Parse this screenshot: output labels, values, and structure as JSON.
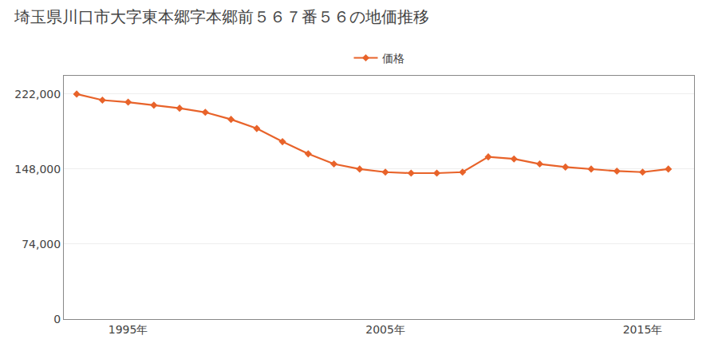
{
  "chart_data": {
    "type": "line",
    "title": "埼玉県川口市大字東本郷字本郷前５６７番５６の地価推移",
    "x": [
      1993,
      1994,
      1995,
      1996,
      1997,
      1998,
      1999,
      2000,
      2001,
      2002,
      2003,
      2004,
      2005,
      2006,
      2007,
      2008,
      2009,
      2010,
      2011,
      2012,
      2013,
      2014,
      2015,
      2016
    ],
    "series": [
      {
        "name": "価格",
        "color": "#e8632a",
        "marker": "diamond",
        "values": [
          222000,
          216000,
          214000,
          211000,
          208000,
          204000,
          197000,
          188000,
          175000,
          163000,
          153000,
          148000,
          145000,
          144000,
          144000,
          145000,
          160000,
          158000,
          153000,
          150000,
          148000,
          146000,
          145000,
          148000
        ]
      }
    ],
    "xlim": [
      1992.5,
      2017
    ],
    "xticks": [
      {
        "value": 1995,
        "label": "1995年"
      },
      {
        "value": 2005,
        "label": "2005年"
      },
      {
        "value": 2015,
        "label": "2015年"
      }
    ],
    "ylim": [
      0,
      240000
    ],
    "yticks": [
      0,
      {
        "value": 74000,
        "label": "74,000"
      },
      {
        "value": 148000,
        "label": "148,000"
      },
      {
        "value": 222000,
        "label": "222,000"
      }
    ],
    "grid": "y",
    "legend": "top"
  }
}
